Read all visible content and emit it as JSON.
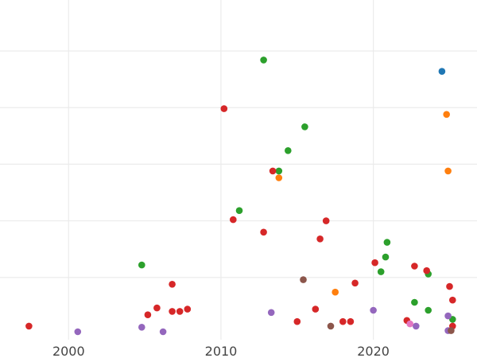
{
  "chart_data": {
    "type": "scatter",
    "title": "",
    "xlabel": "",
    "ylabel": "",
    "xlim": [
      1995.5,
      2026.8
    ],
    "ylim": [
      -0.5,
      29.5
    ],
    "xticks": [
      2000,
      2010,
      2020
    ],
    "xtick_labels": [
      "2000",
      "2010",
      "2020"
    ],
    "yticks": [
      5,
      10,
      15,
      20,
      25
    ],
    "ytick_labels": [],
    "grid": true,
    "legend": "none",
    "series": [
      {
        "color": "#1f77b4",
        "points": [
          [
            2024.5,
            23.2
          ]
        ]
      },
      {
        "color": "#ff7f0e",
        "points": [
          [
            2024.8,
            19.4
          ],
          [
            2024.9,
            14.4
          ],
          [
            2013.8,
            13.8
          ],
          [
            2017.5,
            3.7
          ]
        ]
      },
      {
        "color": "#2ca02c",
        "points": [
          [
            2012.8,
            24.2
          ],
          [
            2015.5,
            18.3
          ],
          [
            2014.4,
            16.2
          ],
          [
            2013.8,
            14.4
          ],
          [
            2011.2,
            10.9
          ],
          [
            2020.9,
            8.1
          ],
          [
            2020.8,
            6.8
          ],
          [
            2004.8,
            6.1
          ],
          [
            2020.5,
            5.5
          ],
          [
            2023.6,
            5.3
          ],
          [
            2022.7,
            2.8
          ],
          [
            2023.6,
            2.1
          ],
          [
            2025.2,
            1.3
          ]
        ]
      },
      {
        "color": "#d62728",
        "points": [
          [
            2010.2,
            19.9
          ],
          [
            2013.4,
            14.4
          ],
          [
            2010.8,
            10.1
          ],
          [
            2016.9,
            10.0
          ],
          [
            2012.8,
            9.0
          ],
          [
            2016.5,
            8.4
          ],
          [
            2020.1,
            6.3
          ],
          [
            2022.7,
            6.0
          ],
          [
            2023.5,
            5.6
          ],
          [
            2006.8,
            4.4
          ],
          [
            2018.8,
            4.5
          ],
          [
            2025.0,
            4.2
          ],
          [
            2025.2,
            3.0
          ],
          [
            2005.8,
            2.3
          ],
          [
            2006.8,
            2.0
          ],
          [
            2007.3,
            2.0
          ],
          [
            2007.8,
            2.2
          ],
          [
            2016.2,
            2.2
          ],
          [
            2005.2,
            1.7
          ],
          [
            2015.0,
            1.1
          ],
          [
            2018.0,
            1.1
          ],
          [
            2018.5,
            1.1
          ],
          [
            2022.2,
            1.2
          ],
          [
            1997.4,
            0.7
          ],
          [
            2025.2,
            0.7
          ]
        ]
      },
      {
        "color": "#9467bd",
        "points": [
          [
            2013.3,
            1.9
          ],
          [
            2020.0,
            2.1
          ],
          [
            2024.9,
            1.6
          ],
          [
            2004.8,
            0.6
          ],
          [
            2000.6,
            0.2
          ],
          [
            2006.2,
            0.2
          ],
          [
            2022.8,
            0.7
          ],
          [
            2024.9,
            0.3
          ]
        ]
      },
      {
        "color": "#8c564b",
        "points": [
          [
            2015.4,
            4.8
          ],
          [
            2017.2,
            0.7
          ],
          [
            2025.1,
            0.3
          ]
        ]
      },
      {
        "color": "#e377c2",
        "points": [
          [
            2022.4,
            0.9
          ]
        ]
      }
    ]
  }
}
